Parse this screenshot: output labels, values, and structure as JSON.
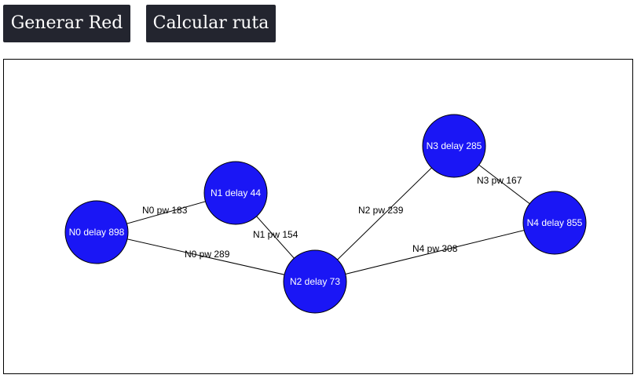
{
  "toolbar": {
    "generate_label": "Generar Red",
    "route_label": "Calcular ruta"
  },
  "colors": {
    "button_bg": "#23252f",
    "node_fill": "#1a16f5",
    "edge_stroke": "#000000"
  },
  "network": {
    "nodes": [
      {
        "id": "N0",
        "label": "N0 delay 898"
      },
      {
        "id": "N1",
        "label": "N1 delay 44"
      },
      {
        "id": "N2",
        "label": "N2 delay 73"
      },
      {
        "id": "N3",
        "label": "N3 delay 285"
      },
      {
        "id": "N4",
        "label": "N4 delay 855"
      }
    ],
    "edges": [
      {
        "from": "N0",
        "to": "N1",
        "label": "N0 pw 183"
      },
      {
        "from": "N0",
        "to": "N2",
        "label": "N0 pw 289"
      },
      {
        "from": "N1",
        "to": "N2",
        "label": "N1 pw 154"
      },
      {
        "from": "N2",
        "to": "N3",
        "label": "N2 pw 239"
      },
      {
        "from": "N2",
        "to": "N4",
        "label": "N4 pw 308"
      },
      {
        "from": "N3",
        "to": "N4",
        "label": "N3 pw 167"
      }
    ]
  }
}
